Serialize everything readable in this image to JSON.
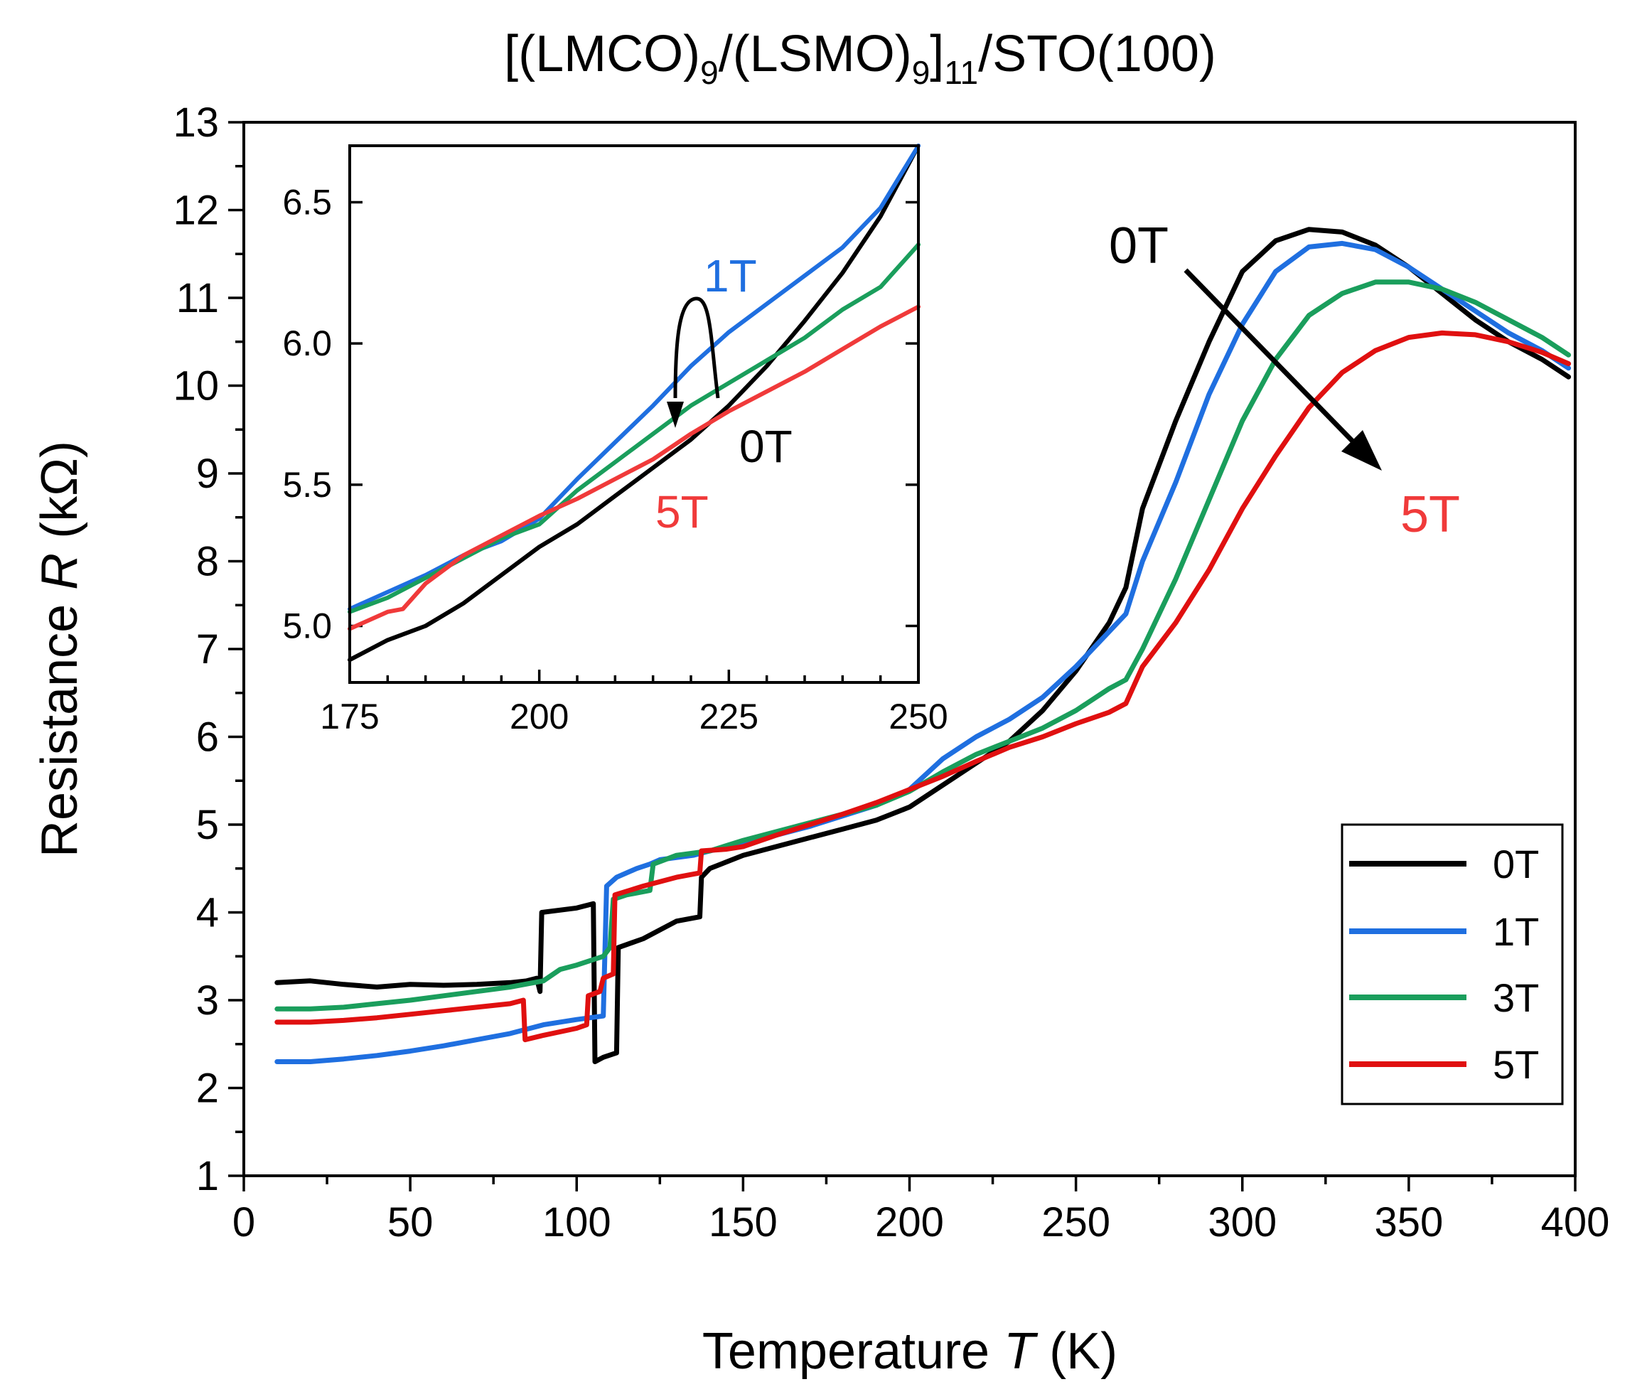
{
  "chart_data": [
    {
      "type": "line",
      "title": "[(LMCO)9/(LSMO)9]11/STO(100)",
      "title_parts": {
        "a": "[(LMCO)",
        "s1": "9",
        "b": "/(LSMO)",
        "s2": "9",
        "c": "]",
        "s3": "11",
        "d": "/STO(100)"
      },
      "xlabel": "Temperature T (K)",
      "xlabel_parts": {
        "pre": "Temperature ",
        "var": "T",
        "post": " (K)"
      },
      "ylabel": "Resistance R (kΩ)",
      "ylabel_parts": {
        "pre": "Resistance ",
        "var": "R",
        "post": " (kΩ)"
      },
      "xlim": [
        0,
        400
      ],
      "ylim": [
        1,
        13
      ],
      "xticks": [
        "0",
        "50",
        "100",
        "150",
        "200",
        "250",
        "300",
        "350",
        "400"
      ],
      "yticks": [
        "1",
        "2",
        "3",
        "4",
        "5",
        "6",
        "7",
        "8",
        "9",
        "10",
        "11",
        "12",
        "13"
      ],
      "legend": {
        "position": "bottom-right",
        "entries": [
          "0T",
          "1T",
          "3T",
          "5T"
        ]
      },
      "annotations": {
        "start": "0T",
        "end": "5T"
      },
      "series": [
        {
          "name": "0T",
          "color": "#000000",
          "points": [
            [
              10,
              3.2
            ],
            [
              20,
              3.22
            ],
            [
              30,
              3.18
            ],
            [
              40,
              3.15
            ],
            [
              50,
              3.18
            ],
            [
              60,
              3.17
            ],
            [
              70,
              3.18
            ],
            [
              80,
              3.2
            ],
            [
              85,
              3.22
            ],
            [
              88,
              3.25
            ],
            [
              89,
              3.1
            ],
            [
              89.5,
              4.0
            ],
            [
              100,
              4.05
            ],
            [
              105,
              4.1
            ],
            [
              105.5,
              2.3
            ],
            [
              108,
              2.35
            ],
            [
              112,
              2.4
            ],
            [
              112.5,
              3.6
            ],
            [
              120,
              3.7
            ],
            [
              130,
              3.9
            ],
            [
              137,
              3.95
            ],
            [
              137.5,
              4.4
            ],
            [
              140,
              4.5
            ],
            [
              150,
              4.65
            ],
            [
              160,
              4.75
            ],
            [
              170,
              4.85
            ],
            [
              180,
              4.95
            ],
            [
              190,
              5.05
            ],
            [
              200,
              5.2
            ],
            [
              210,
              5.45
            ],
            [
              220,
              5.7
            ],
            [
              230,
              5.95
            ],
            [
              240,
              6.3
            ],
            [
              250,
              6.75
            ],
            [
              260,
              7.3
            ],
            [
              265,
              7.7
            ],
            [
              270,
              8.6
            ],
            [
              280,
              9.6
            ],
            [
              290,
              10.5
            ],
            [
              300,
              11.3
            ],
            [
              310,
              11.65
            ],
            [
              320,
              11.78
            ],
            [
              330,
              11.75
            ],
            [
              340,
              11.6
            ],
            [
              350,
              11.35
            ],
            [
              360,
              11.05
            ],
            [
              370,
              10.75
            ],
            [
              380,
              10.5
            ],
            [
              390,
              10.3
            ],
            [
              398,
              10.1
            ]
          ]
        },
        {
          "name": "1T",
          "color": "#1f6fe0",
          "points": [
            [
              10,
              2.3
            ],
            [
              20,
              2.3
            ],
            [
              30,
              2.33
            ],
            [
              40,
              2.37
            ],
            [
              50,
              2.42
            ],
            [
              60,
              2.48
            ],
            [
              70,
              2.55
            ],
            [
              80,
              2.62
            ],
            [
              90,
              2.72
            ],
            [
              100,
              2.78
            ],
            [
              108,
              2.82
            ],
            [
              109,
              4.3
            ],
            [
              112,
              4.4
            ],
            [
              118,
              4.5
            ],
            [
              122,
              4.55
            ],
            [
              125,
              4.6
            ],
            [
              135,
              4.65
            ],
            [
              140,
              4.7
            ],
            [
              150,
              4.78
            ],
            [
              160,
              4.88
            ],
            [
              170,
              4.98
            ],
            [
              180,
              5.1
            ],
            [
              190,
              5.22
            ],
            [
              200,
              5.4
            ],
            [
              210,
              5.75
            ],
            [
              220,
              6.0
            ],
            [
              230,
              6.2
            ],
            [
              240,
              6.45
            ],
            [
              250,
              6.8
            ],
            [
              260,
              7.2
            ],
            [
              265,
              7.4
            ],
            [
              270,
              8.0
            ],
            [
              280,
              8.9
            ],
            [
              290,
              9.9
            ],
            [
              300,
              10.7
            ],
            [
              310,
              11.3
            ],
            [
              320,
              11.58
            ],
            [
              330,
              11.62
            ],
            [
              340,
              11.55
            ],
            [
              350,
              11.35
            ],
            [
              360,
              11.1
            ],
            [
              370,
              10.85
            ],
            [
              380,
              10.6
            ],
            [
              390,
              10.4
            ],
            [
              398,
              10.2
            ]
          ]
        },
        {
          "name": "3T",
          "color": "#1a9e5c",
          "points": [
            [
              10,
              2.9
            ],
            [
              20,
              2.9
            ],
            [
              30,
              2.92
            ],
            [
              40,
              2.96
            ],
            [
              50,
              3.0
            ],
            [
              60,
              3.05
            ],
            [
              70,
              3.1
            ],
            [
              80,
              3.15
            ],
            [
              90,
              3.22
            ],
            [
              95,
              3.35
            ],
            [
              100,
              3.4
            ],
            [
              108,
              3.5
            ],
            [
              110,
              3.6
            ],
            [
              111,
              4.15
            ],
            [
              115,
              4.2
            ],
            [
              122,
              4.25
            ],
            [
              123,
              4.55
            ],
            [
              130,
              4.65
            ],
            [
              140,
              4.7
            ],
            [
              150,
              4.82
            ],
            [
              160,
              4.92
            ],
            [
              170,
              5.02
            ],
            [
              180,
              5.12
            ],
            [
              190,
              5.22
            ],
            [
              200,
              5.38
            ],
            [
              210,
              5.6
            ],
            [
              220,
              5.8
            ],
            [
              230,
              5.95
            ],
            [
              240,
              6.1
            ],
            [
              250,
              6.3
            ],
            [
              260,
              6.55
            ],
            [
              265,
              6.65
            ],
            [
              270,
              7.0
            ],
            [
              280,
              7.8
            ],
            [
              290,
              8.7
            ],
            [
              300,
              9.6
            ],
            [
              310,
              10.3
            ],
            [
              320,
              10.8
            ],
            [
              330,
              11.05
            ],
            [
              340,
              11.18
            ],
            [
              350,
              11.18
            ],
            [
              360,
              11.1
            ],
            [
              370,
              10.95
            ],
            [
              380,
              10.75
            ],
            [
              390,
              10.55
            ],
            [
              398,
              10.35
            ]
          ]
        },
        {
          "name": "5T",
          "color": "#e01010",
          "points": [
            [
              10,
              2.75
            ],
            [
              20,
              2.75
            ],
            [
              30,
              2.77
            ],
            [
              40,
              2.8
            ],
            [
              50,
              2.84
            ],
            [
              60,
              2.88
            ],
            [
              70,
              2.92
            ],
            [
              80,
              2.96
            ],
            [
              84,
              3.0
            ],
            [
              84.5,
              2.55
            ],
            [
              90,
              2.6
            ],
            [
              100,
              2.68
            ],
            [
              103,
              2.72
            ],
            [
              103.5,
              3.05
            ],
            [
              107,
              3.1
            ],
            [
              108,
              3.25
            ],
            [
              111,
              3.3
            ],
            [
              111.5,
              4.2
            ],
            [
              120,
              4.3
            ],
            [
              130,
              4.4
            ],
            [
              137,
              4.45
            ],
            [
              137.5,
              4.7
            ],
            [
              145,
              4.72
            ],
            [
              150,
              4.75
            ],
            [
              160,
              4.88
            ],
            [
              170,
              5.0
            ],
            [
              180,
              5.12
            ],
            [
              190,
              5.25
            ],
            [
              200,
              5.4
            ],
            [
              210,
              5.55
            ],
            [
              220,
              5.72
            ],
            [
              230,
              5.88
            ],
            [
              240,
              6.0
            ],
            [
              250,
              6.15
            ],
            [
              260,
              6.28
            ],
            [
              265,
              6.38
            ],
            [
              270,
              6.8
            ],
            [
              280,
              7.3
            ],
            [
              290,
              7.9
            ],
            [
              300,
              8.6
            ],
            [
              310,
              9.2
            ],
            [
              320,
              9.75
            ],
            [
              330,
              10.15
            ],
            [
              340,
              10.4
            ],
            [
              350,
              10.55
            ],
            [
              360,
              10.6
            ],
            [
              370,
              10.58
            ],
            [
              380,
              10.5
            ],
            [
              390,
              10.38
            ],
            [
              398,
              10.25
            ]
          ]
        }
      ]
    },
    {
      "type": "line",
      "title": "inset",
      "xlim": [
        175,
        250
      ],
      "ylim": [
        4.8,
        6.7
      ],
      "xticks": [
        "175",
        "200",
        "225",
        "250"
      ],
      "yticks": [
        "5.0",
        "5.5",
        "6.0",
        "6.5"
      ],
      "annotations": {
        "a1T": "1T",
        "a0T": "0T",
        "a5T": "5T"
      },
      "series": [
        {
          "name": "0T",
          "color": "#000000",
          "points": [
            [
              175,
              4.88
            ],
            [
              180,
              4.95
            ],
            [
              185,
              5.0
            ],
            [
              190,
              5.08
            ],
            [
              195,
              5.18
            ],
            [
              200,
              5.28
            ],
            [
              205,
              5.36
            ],
            [
              210,
              5.46
            ],
            [
              215,
              5.56
            ],
            [
              220,
              5.66
            ],
            [
              225,
              5.78
            ],
            [
              230,
              5.92
            ],
            [
              235,
              6.08
            ],
            [
              240,
              6.25
            ],
            [
              245,
              6.45
            ],
            [
              250,
              6.7
            ]
          ]
        },
        {
          "name": "1T",
          "color": "#1f6fe0",
          "points": [
            [
              175,
              5.06
            ],
            [
              180,
              5.12
            ],
            [
              185,
              5.18
            ],
            [
              190,
              5.25
            ],
            [
              195,
              5.3
            ],
            [
              200,
              5.38
            ],
            [
              205,
              5.52
            ],
            [
              210,
              5.65
            ],
            [
              215,
              5.78
            ],
            [
              220,
              5.92
            ],
            [
              225,
              6.04
            ],
            [
              230,
              6.14
            ],
            [
              235,
              6.24
            ],
            [
              240,
              6.34
            ],
            [
              245,
              6.48
            ],
            [
              250,
              6.7
            ]
          ]
        },
        {
          "name": "3T",
          "color": "#1a9e5c",
          "points": [
            [
              175,
              5.05
            ],
            [
              180,
              5.1
            ],
            [
              185,
              5.17
            ],
            [
              190,
              5.24
            ],
            [
              195,
              5.31
            ],
            [
              200,
              5.36
            ],
            [
              205,
              5.48
            ],
            [
              210,
              5.58
            ],
            [
              215,
              5.68
            ],
            [
              220,
              5.78
            ],
            [
              225,
              5.86
            ],
            [
              230,
              5.94
            ],
            [
              235,
              6.02
            ],
            [
              240,
              6.12
            ],
            [
              245,
              6.2
            ],
            [
              250,
              6.35
            ]
          ]
        },
        {
          "name": "5T",
          "color": "#f03a3a",
          "points": [
            [
              175,
              4.99
            ],
            [
              180,
              5.05
            ],
            [
              182,
              5.06
            ],
            [
              185,
              5.15
            ],
            [
              190,
              5.25
            ],
            [
              195,
              5.32
            ],
            [
              200,
              5.39
            ],
            [
              205,
              5.45
            ],
            [
              210,
              5.52
            ],
            [
              215,
              5.59
            ],
            [
              220,
              5.68
            ],
            [
              225,
              5.76
            ],
            [
              230,
              5.83
            ],
            [
              235,
              5.9
            ],
            [
              240,
              5.98
            ],
            [
              245,
              6.06
            ],
            [
              250,
              6.13
            ]
          ]
        }
      ]
    }
  ]
}
